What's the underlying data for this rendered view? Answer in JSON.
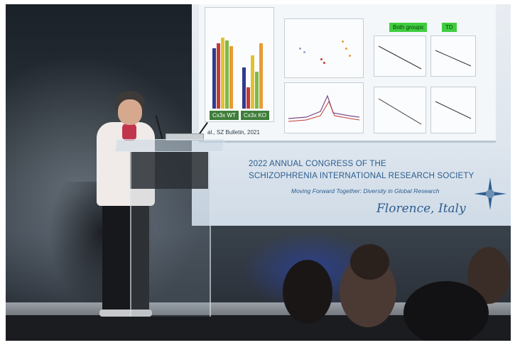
{
  "slide": {
    "citation": "al., SZ Bulletin, 2021",
    "left_panel_labels": [
      "Cx3x WT",
      "Cx3x KO"
    ],
    "green_tags": [
      "Both groups",
      "TD"
    ],
    "legend": [
      "",
      "",
      ""
    ]
  },
  "banner": {
    "line1": "2022 ANNUAL CONGRESS OF THE",
    "line2": "SCHIZOPHRENIA INTERNATIONAL RESEARCH SOCIETY",
    "tagline": "Moving Forward Together: Diversity in Global Research",
    "location": "Florence, Italy"
  },
  "colors": {
    "banner_text": "#2c5d8f",
    "bar_colors": [
      "#2f3b8f",
      "#e0c32c",
      "#7fb84a",
      "#c23a35",
      "#e89b35"
    ]
  }
}
